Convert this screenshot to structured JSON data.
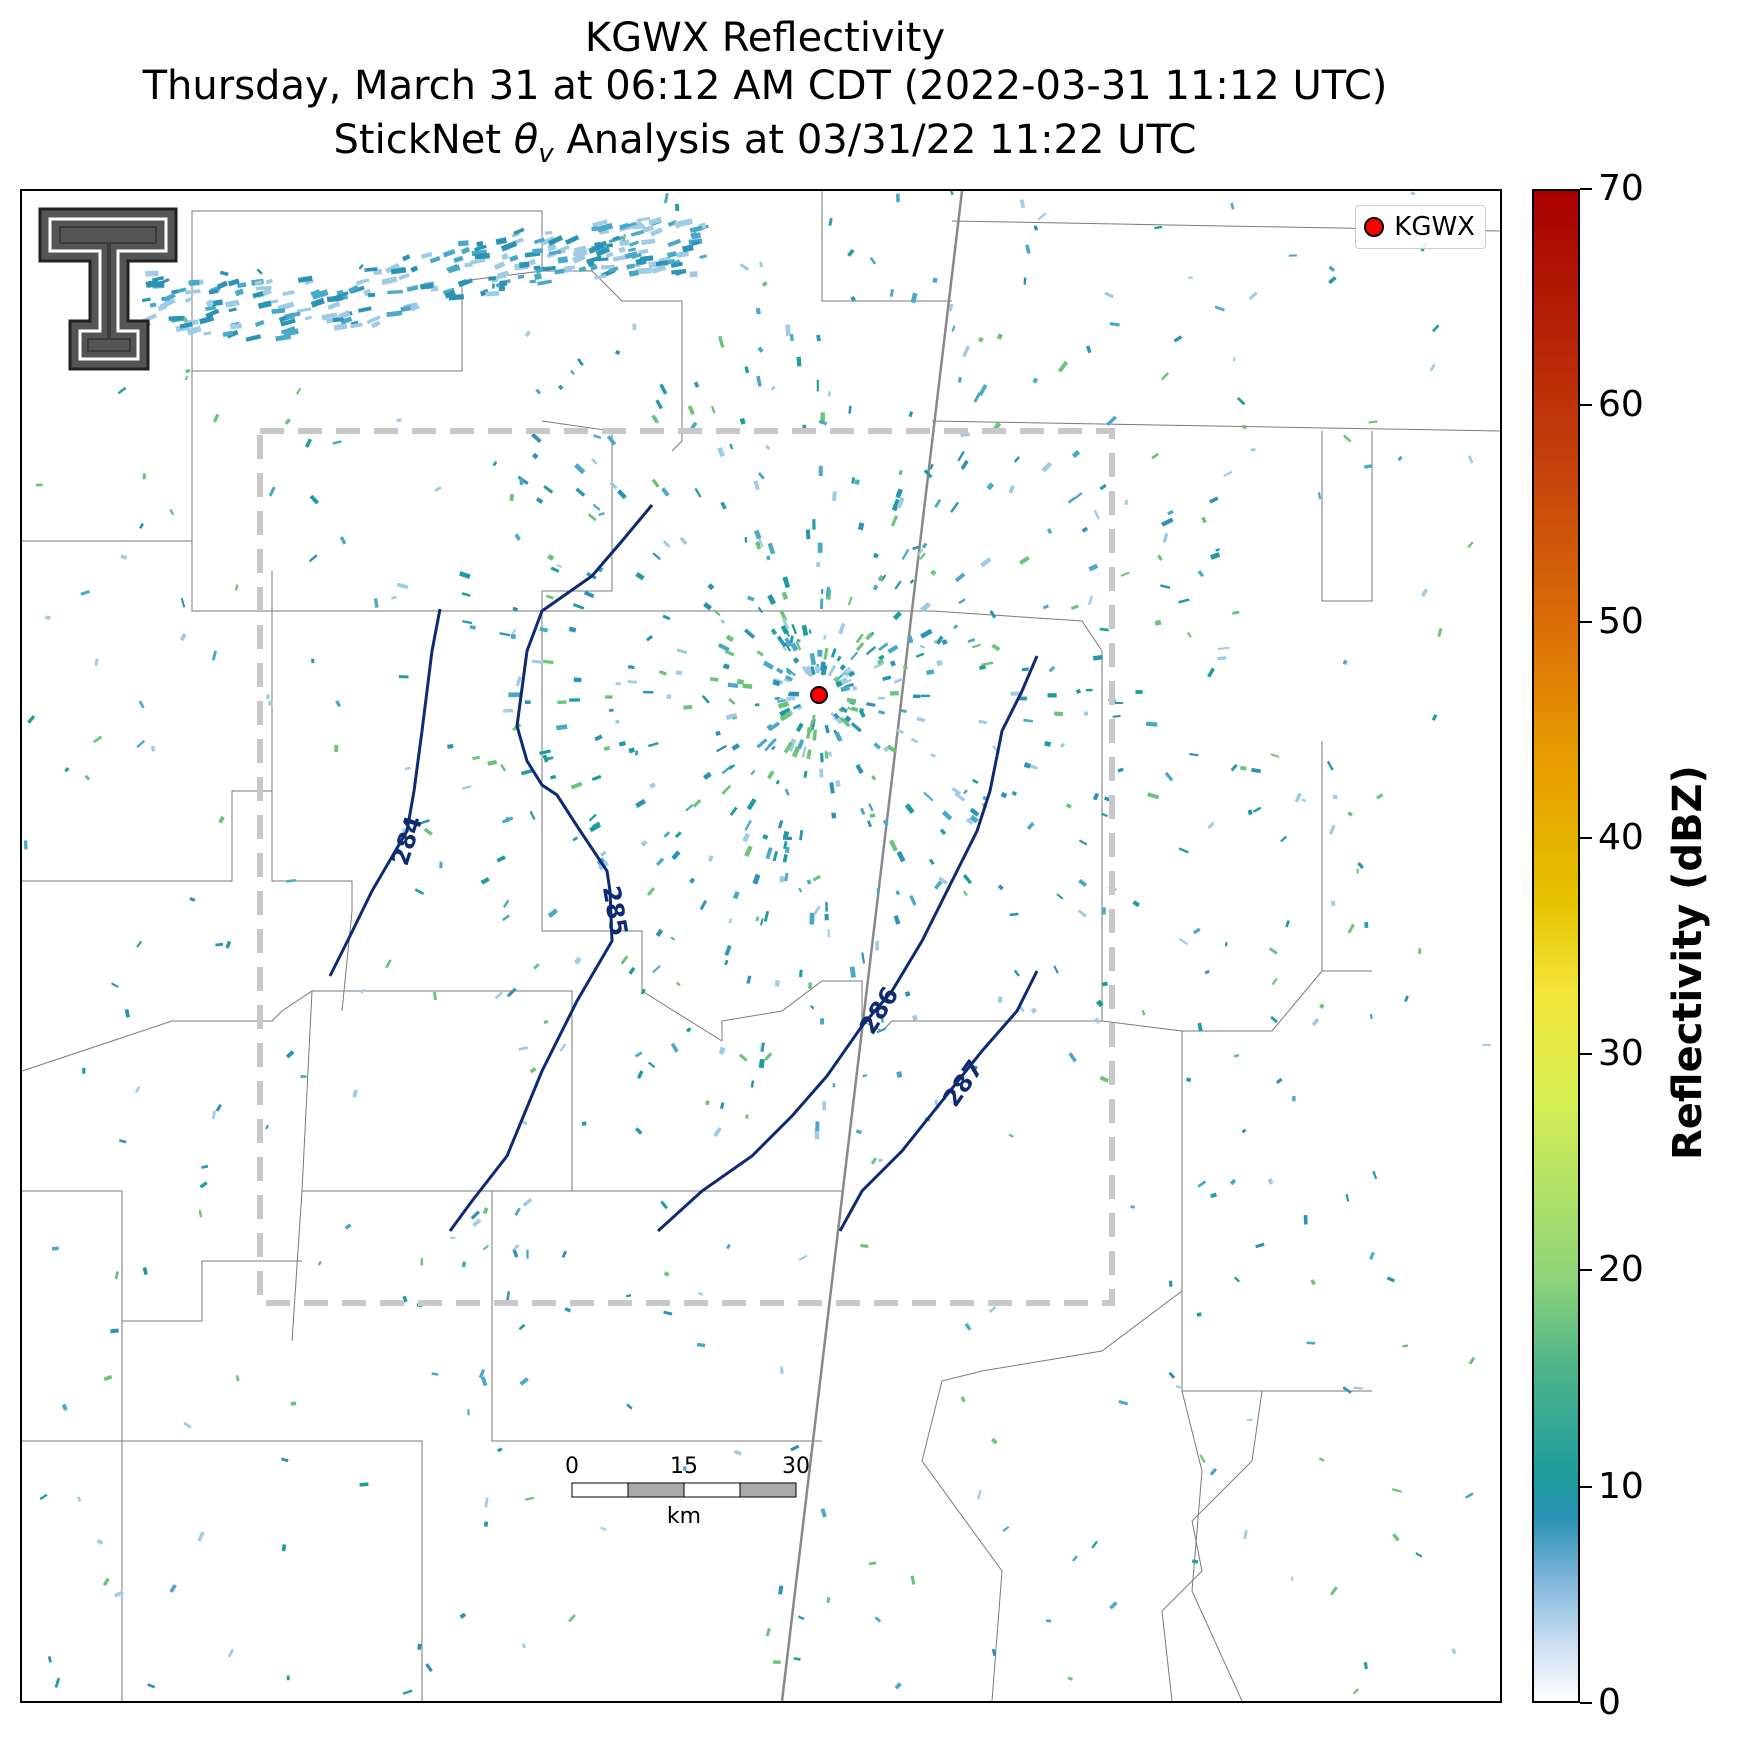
{
  "title": {
    "line1": "KGWX Reflectivity",
    "line2": "Thursday, March 31 at 06:12 AM CDT (2022-03-31 11:12 UTC)",
    "line3_prefix": "StickNet ",
    "line3_symbol": "θ",
    "line3_subscript": "v",
    "line3_suffix": " Analysis at 03/31/22 11:22 UTC"
  },
  "legend": {
    "label": "KGWX",
    "marker_color": "#ff0000"
  },
  "colorbar": {
    "title": "Reflectivity (dBZ)",
    "ticks": [
      "0",
      "10",
      "20",
      "30",
      "40",
      "50",
      "60",
      "70"
    ],
    "range": [
      0,
      70
    ]
  },
  "contours": [
    {
      "label": "284",
      "value": 284
    },
    {
      "label": "285",
      "value": 285
    },
    {
      "label": "286",
      "value": 286
    },
    {
      "label": "287",
      "value": 287
    }
  ],
  "contour_color": "#0d2a73",
  "scale_bar": {
    "ticks": [
      "0",
      "15",
      "30"
    ],
    "unit": "km"
  },
  "radar_site": {
    "name": "KGWX"
  },
  "colors": {
    "analysis_box": "#c8c8c8",
    "county_lines": "#7a7a7a",
    "echo_teal": "#2c93b5",
    "echo_green": "#6cc47a"
  }
}
